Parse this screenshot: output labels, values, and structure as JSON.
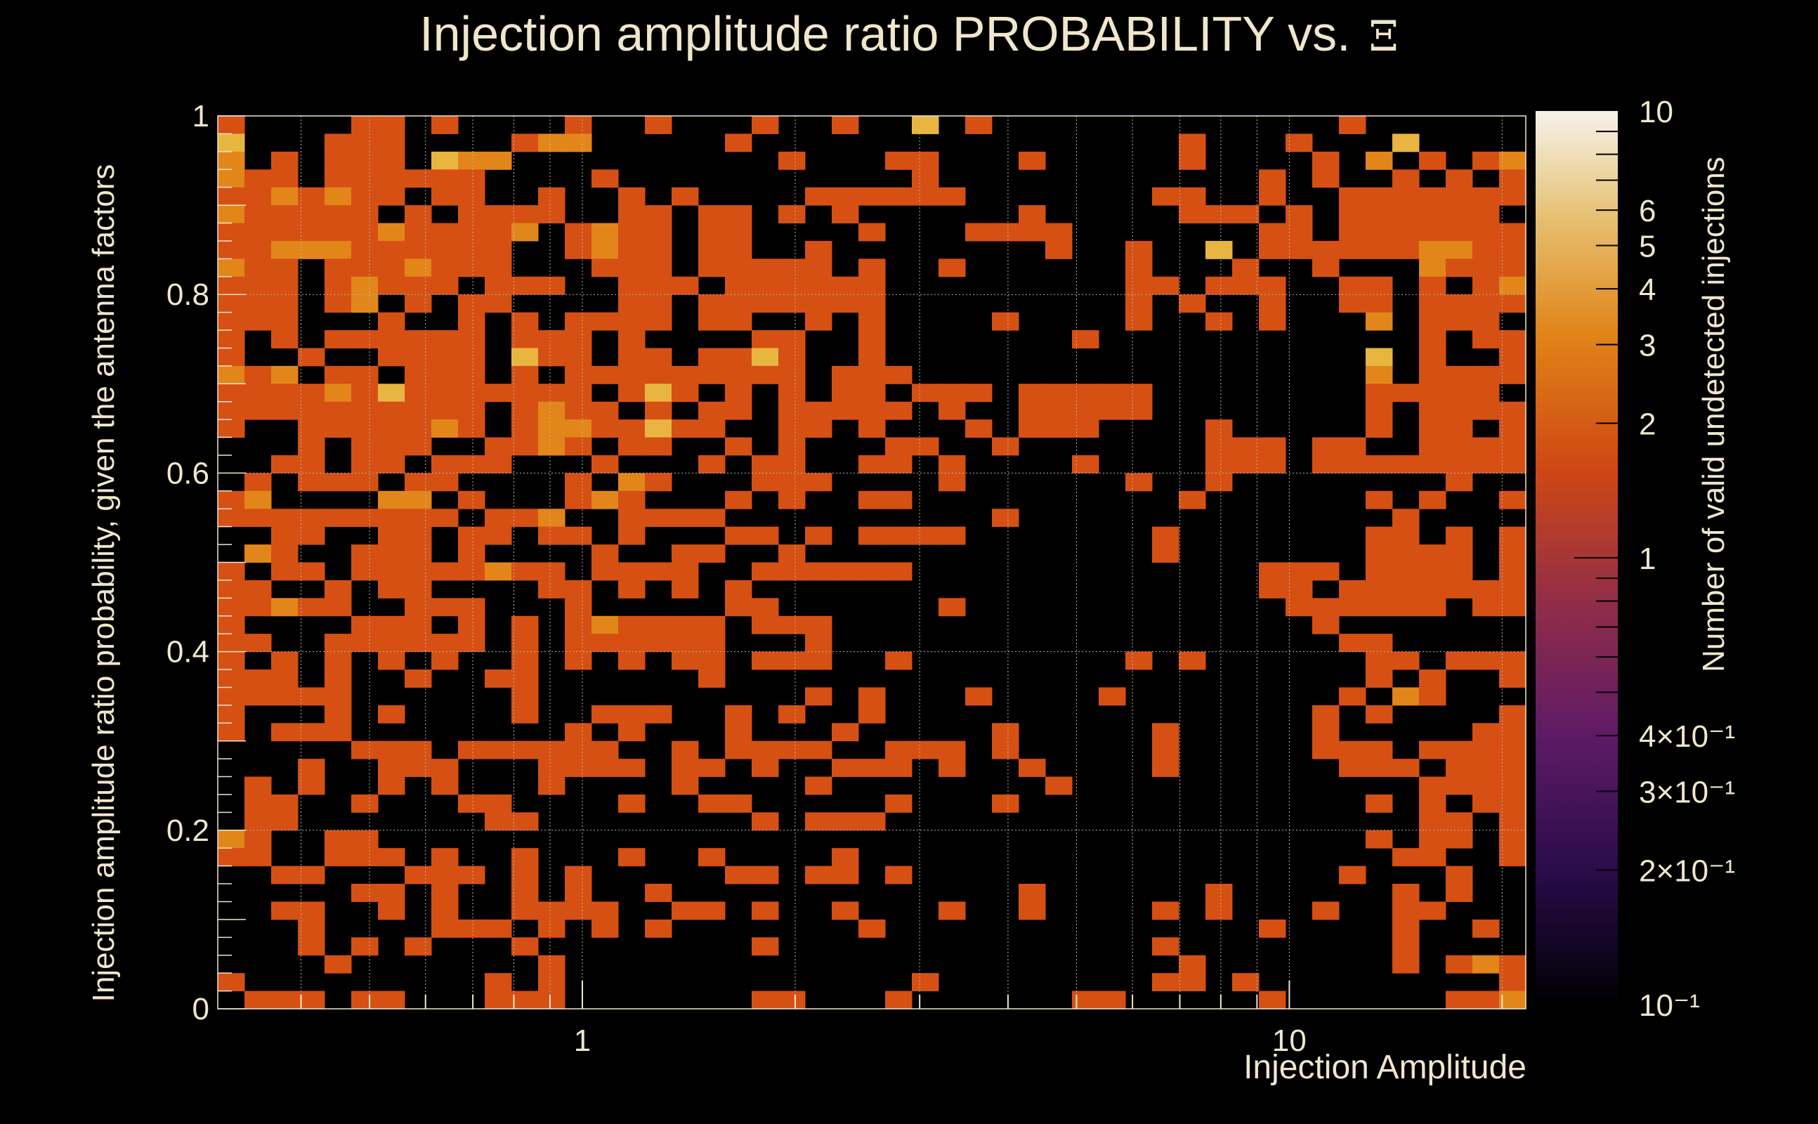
{
  "chart_data": {
    "type": "heatmap",
    "title": "Injection amplitude ratio PROBABILITY vs.",
    "title_symbol": "Ξ",
    "xlabel": "Injection Amplitude",
    "ylabel": "Injection amplitude ratio probability, given the antenna factors",
    "zlabel": "Number of valid undetected injections",
    "xscale": "log",
    "xlim": [
      0.305,
      21.6
    ],
    "ylim": [
      0,
      1
    ],
    "zscale": "log",
    "zlim": [
      0.1,
      10
    ],
    "xticks": [
      {
        "v": 1,
        "label": "1"
      },
      {
        "v": 10,
        "label": "10"
      }
    ],
    "yticks": [
      {
        "v": 0,
        "label": "0"
      },
      {
        "v": 0.2,
        "label": "0.2"
      },
      {
        "v": 0.4,
        "label": "0.4"
      },
      {
        "v": 0.6,
        "label": "0.6"
      },
      {
        "v": 0.8,
        "label": "0.8"
      },
      {
        "v": 1,
        "label": "1"
      }
    ],
    "zticks": [
      {
        "v": 10,
        "label": "10"
      },
      {
        "v": 6,
        "label": "6"
      },
      {
        "v": 5,
        "label": "5"
      },
      {
        "v": 4,
        "label": "4"
      },
      {
        "v": 3,
        "label": "3"
      },
      {
        "v": 2,
        "label": "2"
      },
      {
        "v": 1,
        "label": "1"
      },
      {
        "v": 0.4,
        "label": "4×10⁻¹"
      },
      {
        "v": 0.3,
        "label": "3×10⁻¹"
      },
      {
        "v": 0.2,
        "label": "2×10⁻¹"
      },
      {
        "v": 0.1,
        "label": "10⁻¹"
      }
    ],
    "grid": true,
    "nx": 49,
    "ny": 50,
    "cell_encoding": "rows from y=1 (top) to y=0 (bottom); each char = count in bin, 0 = empty",
    "rows": [
      "1000011010000100100010010030100000000000001000000",
      "3000111000012200000100000000000000001000100030000",
      "2010111032200000000001000110001000001000010201012",
      "2110111111000010000000000010000000000001010010101",
      "1121211011001001010000111111000000011001001111111",
      "2111110101111001101101010000001000001110101111110",
      "1111112111120121101100001000111100000001101111111",
      "1122211111100121101100100000000100100301111112211",
      "2110111211100011101111101001000000100010010002111",
      "1110121110111001110111111000000000110111001101012",
      "1110120101100001101111111000000000101001001101111",
      "1110001001010111101100101000010000100101000201110",
      "1010111111011101000011001000000010000000000001011",
      "1001001111031101101131001000000000000000000301001",
      "2120110111010111111111011100000000000000000201111",
      "1111213111111101310101011011101111100000000111110",
      "1111111111012110101101111101001111100000000101111",
      "1001111121012211311001101000101110000100000101101",
      "0001011100112101100101000110010000000111011001111",
      "0011011011100010001011001101000010000111011111111",
      "0101110110000102100011100001000000100100000000100",
      "1200002201000121000101001100000000001000000101001",
      "1111111110112001111000000000010000000000000010000",
      "0011001101101101000110101111000000010000000110101",
      "0210011101000010011001000000000000010000000111101",
      "1011011111211011110011111100000000000001110111101",
      "1100101100001101010100000000000000000001101111111",
      "1121100111000100000110000001000000000000111111011",
      "1000011101010121111011100000000000000000010000000",
      "1100111111010111111000100000000000000000001100000",
      "1010101010010101011011100100000000101000000110111",
      "1110100100110000001000000000000000000000000101001",
      "1111100000010000000000101000100001000000001021000",
      "1000101000010011100101001000000000000000010100001",
      "1011100000000101000100010000010000010000010000011",
      "0000011101111110010111100111010000010000011101111",
      "0001001110001111011010011101001000010000001110111",
      "0101001010001000010000100000000100000000000001111",
      "0110010001100001001100000100010000000000000101011",
      "0110000000110000000010111000000000000000000001101",
      "2100110000000000000000000000000000000000000101101",
      "1100111010010001001000010000000000000000000011001",
      "0011000111010100000110110100000000000000001000100",
      "0000011010010100100000000000001000000100000010100",
      "0011001010011110011010010001001000010100010011000",
      "0001000011101010100000001000000000000001000010010",
      "0001010100010000000010000000000000010000000010000",
      "0000100000001000000000000000000000001000000010121",
      "1000000000101000000000000010000000011010000000001",
      "0111011000111000000011000100000011000001000000112"
    ]
  }
}
